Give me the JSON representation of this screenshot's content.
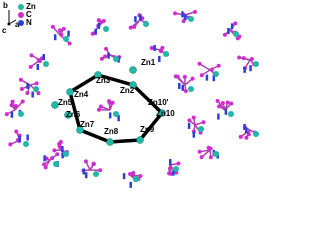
{
  "legend": {
    "items": [
      "Zn",
      "C",
      "N"
    ],
    "colors": [
      "#22b8a8",
      "#d22bd2",
      "#2a3fd6"
    ]
  },
  "axes": {
    "b": "b",
    "a": "a",
    "c": "c"
  },
  "atoms": [
    "Zn1",
    "Zn2",
    "Zn3",
    "Zn4",
    "Zn5",
    "Zn6",
    "Zn7",
    "Zn8",
    "Zn9",
    "Zn10'",
    "Zn10"
  ]
}
